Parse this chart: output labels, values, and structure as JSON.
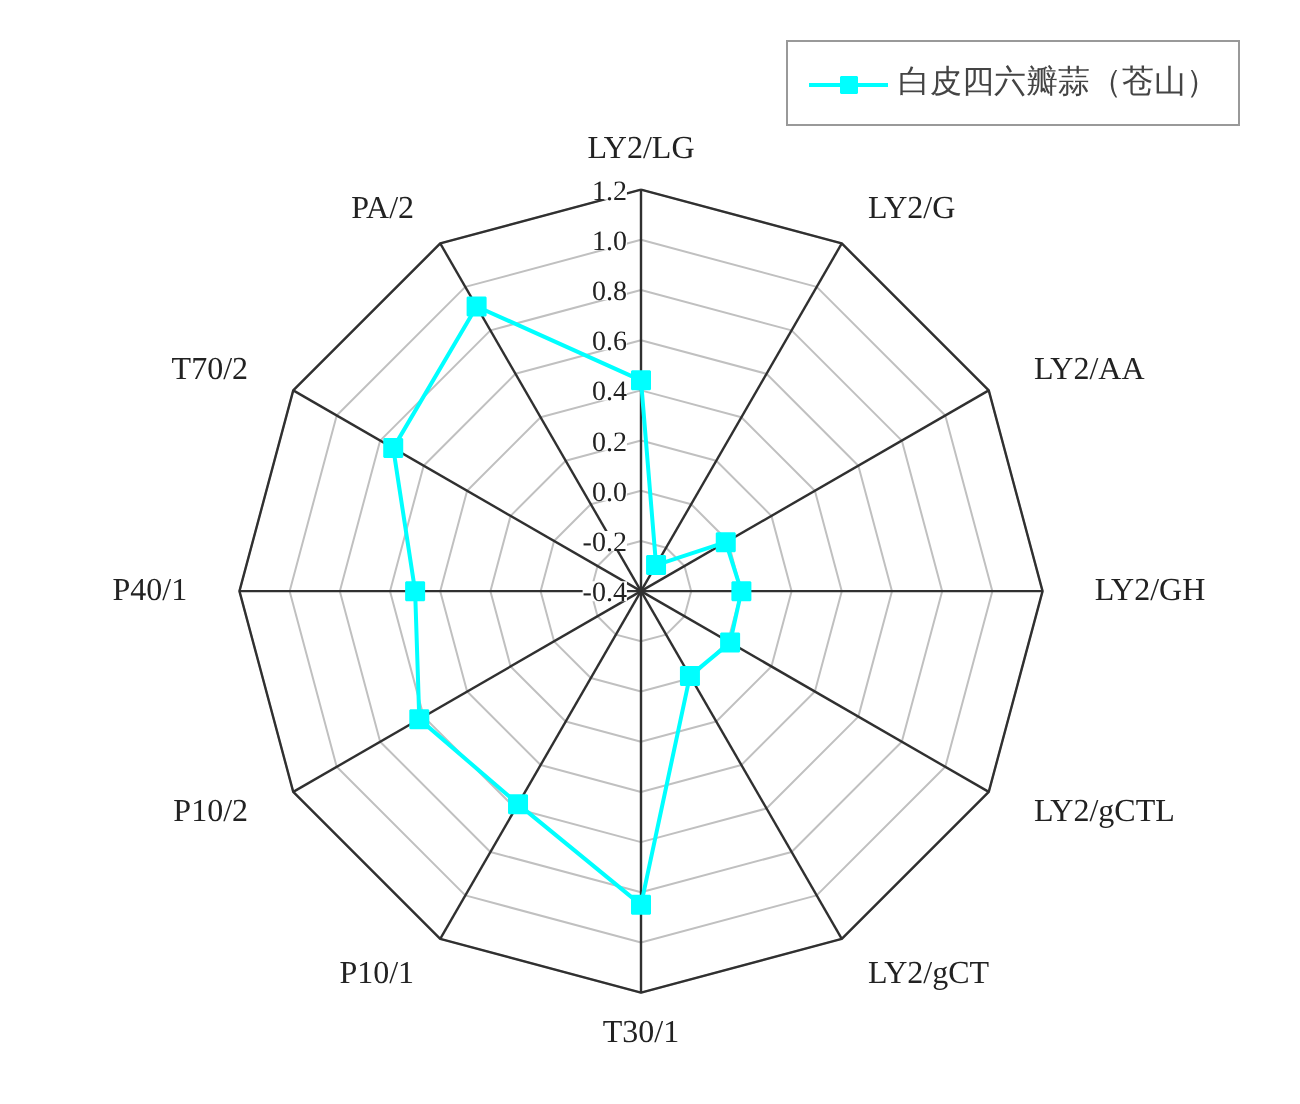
{
  "chart_data": {
    "type": "radar",
    "categories": [
      "LY2/LG",
      "LY2/G",
      "LY2/AA",
      "LY2/GH",
      "LY2/gCTL",
      "LY2/gCT",
      "T30/1",
      "P10/1",
      "P10/2",
      "P40/1",
      "T70/2",
      "PA/2"
    ],
    "series": [
      {
        "name": "白皮四六瓣蒜（苍山）",
        "color": "#00ffff",
        "values": [
          0.44,
          -0.28,
          -0.01,
          0.0,
          0.01,
          -0.01,
          0.85,
          0.58,
          0.62,
          0.5,
          0.74,
          0.91
        ]
      }
    ],
    "ylim": [
      -0.4,
      1.2
    ],
    "yticks": [
      {
        "value": -0.4,
        "label": "-0.4"
      },
      {
        "value": -0.2,
        "label": "-0.2"
      },
      {
        "value": 0.0,
        "label": "0.0"
      },
      {
        "value": 0.2,
        "label": "0.2"
      },
      {
        "value": 0.4,
        "label": "0.4"
      },
      {
        "value": 0.6,
        "label": "0.6"
      },
      {
        "value": 0.8,
        "label": "0.8"
      },
      {
        "value": 1.0,
        "label": "1.0"
      },
      {
        "value": 1.2,
        "label": "1.2"
      }
    ],
    "grid": true,
    "legend": "top right",
    "marker": "square",
    "line_style": "solid"
  }
}
